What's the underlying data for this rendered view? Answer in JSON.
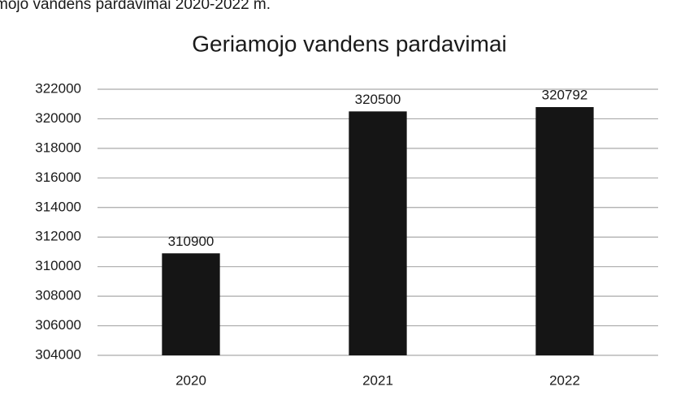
{
  "caption": "mojo vandens pardavimai 2020-2022 m.",
  "chart_data": {
    "type": "bar",
    "title": "Geriamojo vandens pardavimai",
    "categories": [
      "2020",
      "2021",
      "2022"
    ],
    "values": [
      310900,
      320500,
      320792
    ],
    "color": "#151515",
    "ylim": [
      304000,
      322000
    ],
    "yticks": [
      304000,
      306000,
      308000,
      310000,
      312000,
      314000,
      316000,
      318000,
      320000,
      322000
    ],
    "grid": true
  }
}
